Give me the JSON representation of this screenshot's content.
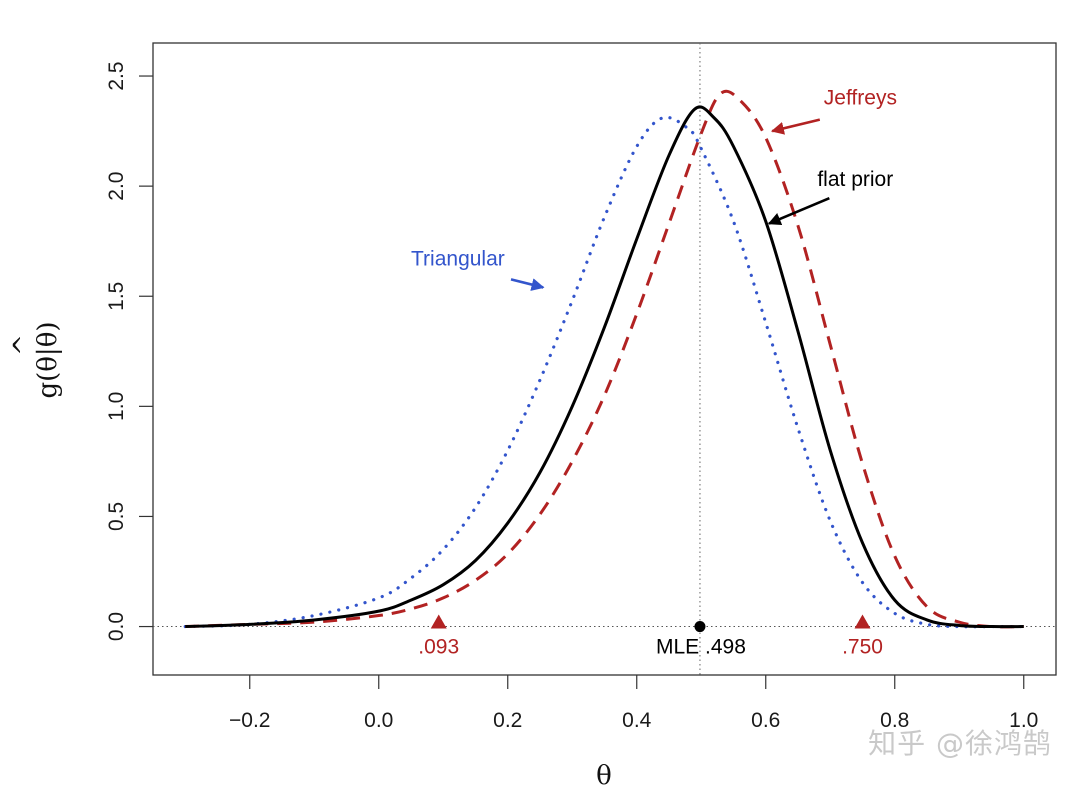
{
  "chart_data": {
    "type": "line",
    "title": "",
    "xlabel": "θ",
    "ylabel_parts": {
      "g": "g(",
      "theta": "θ",
      "bar": "|",
      "theta_hat": "θ",
      "hat": "^",
      "close": ")"
    },
    "ylabel": "g(θ|θ̂)",
    "xlim": [
      -0.35,
      1.05
    ],
    "ylim": [
      -0.22,
      2.65
    ],
    "x_ticks": [
      -0.2,
      0.0,
      0.2,
      0.4,
      0.6,
      0.8,
      1.0
    ],
    "x_tick_labels": [
      "−0.2",
      "0.0",
      "0.2",
      "0.4",
      "0.6",
      "0.8",
      "1.0"
    ],
    "y_ticks": [
      0.0,
      0.5,
      1.0,
      1.5,
      2.0,
      2.5
    ],
    "y_tick_labels": [
      "0.0",
      "0.5",
      "1.0",
      "1.5",
      "2.0",
      "2.5"
    ],
    "grid": false,
    "reference_lines": {
      "vertical_x": 0.498,
      "horizontal_y": 0.0
    },
    "series": [
      {
        "name": "flat prior",
        "style": "solid",
        "color": "#000000",
        "x": [
          -0.3,
          -0.2,
          -0.1,
          0.0,
          0.05,
          0.1,
          0.15,
          0.2,
          0.25,
          0.3,
          0.35,
          0.4,
          0.45,
          0.49,
          0.52,
          0.55,
          0.6,
          0.65,
          0.7,
          0.75,
          0.8,
          0.85,
          0.9,
          0.95,
          1.0
        ],
        "y": [
          0.0,
          0.01,
          0.03,
          0.07,
          0.12,
          0.19,
          0.3,
          0.47,
          0.7,
          1.0,
          1.36,
          1.76,
          2.14,
          2.35,
          2.31,
          2.18,
          1.84,
          1.34,
          0.8,
          0.38,
          0.12,
          0.03,
          0.005,
          0.0,
          0.0
        ]
      },
      {
        "name": "Jeffreys",
        "style": "dashed",
        "color": "#b22222",
        "x": [
          -0.3,
          -0.2,
          -0.1,
          0.0,
          0.05,
          0.1,
          0.15,
          0.2,
          0.25,
          0.3,
          0.35,
          0.4,
          0.45,
          0.5,
          0.53,
          0.56,
          0.6,
          0.65,
          0.7,
          0.75,
          0.8,
          0.85,
          0.9,
          0.95,
          1.0
        ],
        "y": [
          0.0,
          0.01,
          0.02,
          0.05,
          0.08,
          0.13,
          0.21,
          0.33,
          0.51,
          0.75,
          1.05,
          1.42,
          1.83,
          2.24,
          2.42,
          2.39,
          2.22,
          1.82,
          1.28,
          0.74,
          0.32,
          0.09,
          0.02,
          0.0,
          0.0
        ]
      },
      {
        "name": "Triangular",
        "style": "dotted",
        "color": "#3355cc",
        "x": [
          -0.3,
          -0.2,
          -0.1,
          0.0,
          0.05,
          0.1,
          0.15,
          0.2,
          0.25,
          0.3,
          0.35,
          0.4,
          0.44,
          0.48,
          0.5,
          0.55,
          0.6,
          0.65,
          0.7,
          0.75,
          0.8,
          0.85,
          0.9,
          0.95,
          1.0
        ],
        "y": [
          0.0,
          0.01,
          0.05,
          0.13,
          0.22,
          0.35,
          0.54,
          0.8,
          1.12,
          1.48,
          1.86,
          2.18,
          2.31,
          2.26,
          2.17,
          1.84,
          1.38,
          0.9,
          0.48,
          0.2,
          0.06,
          0.01,
          0.0,
          0.0,
          0.0
        ]
      }
    ],
    "markers": [
      {
        "name": "lower-bound",
        "x": 0.093,
        "y": 0.0,
        "shape": "triangle",
        "color": "#b22222",
        "label": ".093"
      },
      {
        "name": "mle",
        "x": 0.498,
        "y": 0.0,
        "shape": "circle",
        "color": "#000000",
        "label": "MLE .498"
      },
      {
        "name": "upper-bound",
        "x": 0.75,
        "y": 0.0,
        "shape": "triangle",
        "color": "#b22222",
        "label": ".750"
      }
    ],
    "annotations": [
      {
        "text": "Jeffreys",
        "color": "#b22222",
        "text_at": [
          0.69,
          2.37
        ],
        "arrow_to": [
          0.61,
          2.25
        ]
      },
      {
        "text": "flat prior",
        "color": "#000000",
        "text_at": [
          0.68,
          2.0
        ],
        "arrow_to": [
          0.605,
          1.83
        ]
      },
      {
        "text": "Triangular",
        "color": "#3355cc",
        "text_at": [
          0.05,
          1.64
        ],
        "arrow_to": [
          0.255,
          1.54
        ]
      }
    ]
  },
  "watermark": "知乎 @徐鸿鹄"
}
